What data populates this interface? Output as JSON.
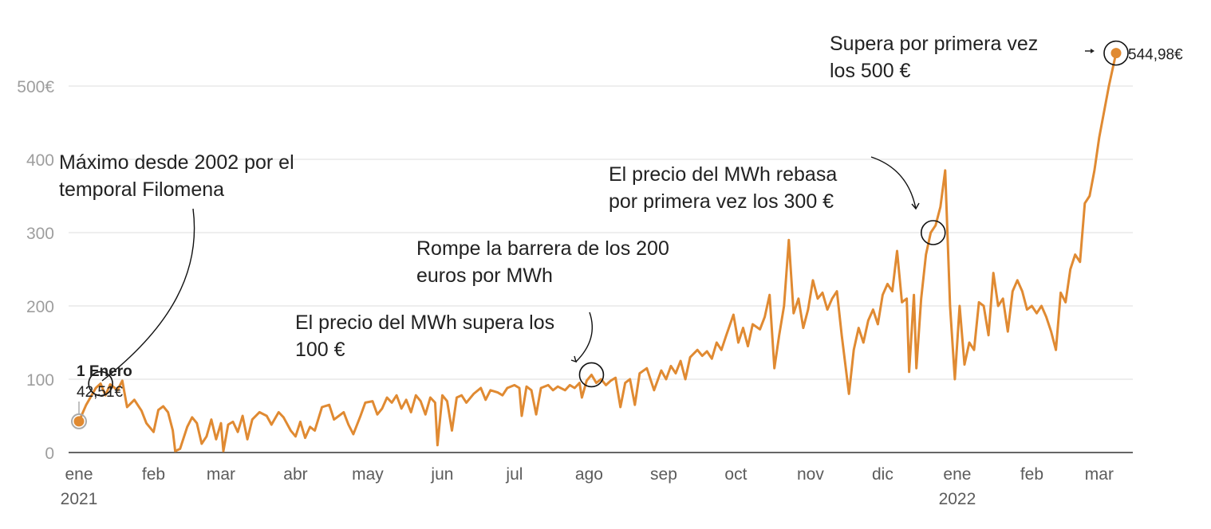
{
  "chart_data": {
    "type": "line",
    "title": "",
    "xlabel": "",
    "ylabel": "",
    "ylim": [
      0,
      550
    ],
    "xlim": [
      "2021-01-01",
      "2022-03-08"
    ],
    "grid": "horizontal",
    "legend": "none",
    "colors": {
      "line": "#e08a32",
      "grid": "#dddddd",
      "axis": "#333333"
    },
    "y_ticks": [
      {
        "value": 0,
        "label": "0"
      },
      {
        "value": 100,
        "label": "100"
      },
      {
        "value": 200,
        "label": "200"
      },
      {
        "value": 300,
        "label": "300"
      },
      {
        "value": 400,
        "label": "400"
      },
      {
        "value": 500,
        "label": "500€"
      }
    ],
    "x_ticks": [
      {
        "date": "2021-01-01",
        "label": "ene",
        "year": "2021"
      },
      {
        "date": "2021-02-01",
        "label": "feb"
      },
      {
        "date": "2021-03-01",
        "label": "mar"
      },
      {
        "date": "2021-04-01",
        "label": "abr"
      },
      {
        "date": "2021-05-01",
        "label": "may"
      },
      {
        "date": "2021-06-01",
        "label": "jun"
      },
      {
        "date": "2021-07-01",
        "label": "jul"
      },
      {
        "date": "2021-08-01",
        "label": "ago"
      },
      {
        "date": "2021-09-01",
        "label": "sep"
      },
      {
        "date": "2021-10-01",
        "label": "oct"
      },
      {
        "date": "2021-11-01",
        "label": "nov"
      },
      {
        "date": "2021-12-01",
        "label": "dic"
      },
      {
        "date": "2022-01-01",
        "label": "ene",
        "year": "2022"
      },
      {
        "date": "2022-02-01",
        "label": "feb"
      },
      {
        "date": "2022-03-01",
        "label": "mar"
      }
    ],
    "series": [
      {
        "points": [
          [
            "2021-01-01",
            42.51
          ],
          [
            "2021-01-04",
            65
          ],
          [
            "2021-01-08",
            88
          ],
          [
            "2021-01-10",
            94
          ],
          [
            "2021-01-12",
            78
          ],
          [
            "2021-01-14",
            93
          ],
          [
            "2021-01-17",
            85
          ],
          [
            "2021-01-19",
            98
          ],
          [
            "2021-01-21",
            62
          ],
          [
            "2021-01-24",
            72
          ],
          [
            "2021-01-27",
            57
          ],
          [
            "2021-01-29",
            40
          ],
          [
            "2021-02-01",
            28
          ],
          [
            "2021-02-03",
            58
          ],
          [
            "2021-02-05",
            63
          ],
          [
            "2021-02-07",
            55
          ],
          [
            "2021-02-09",
            30
          ],
          [
            "2021-02-10",
            2
          ],
          [
            "2021-02-12",
            5
          ],
          [
            "2021-02-15",
            35
          ],
          [
            "2021-02-17",
            48
          ],
          [
            "2021-02-19",
            40
          ],
          [
            "2021-02-21",
            12
          ],
          [
            "2021-02-23",
            22
          ],
          [
            "2021-02-25",
            45
          ],
          [
            "2021-02-27",
            18
          ],
          [
            "2021-03-01",
            40
          ],
          [
            "2021-03-02",
            2
          ],
          [
            "2021-03-04",
            38
          ],
          [
            "2021-03-06",
            42
          ],
          [
            "2021-03-08",
            28
          ],
          [
            "2021-03-10",
            50
          ],
          [
            "2021-03-12",
            18
          ],
          [
            "2021-03-14",
            45
          ],
          [
            "2021-03-17",
            55
          ],
          [
            "2021-03-20",
            50
          ],
          [
            "2021-03-22",
            38
          ],
          [
            "2021-03-25",
            55
          ],
          [
            "2021-03-27",
            48
          ],
          [
            "2021-03-30",
            30
          ],
          [
            "2021-04-01",
            22
          ],
          [
            "2021-04-03",
            42
          ],
          [
            "2021-04-05",
            20
          ],
          [
            "2021-04-07",
            35
          ],
          [
            "2021-04-09",
            30
          ],
          [
            "2021-04-12",
            62
          ],
          [
            "2021-04-15",
            65
          ],
          [
            "2021-04-17",
            45
          ],
          [
            "2021-04-19",
            50
          ],
          [
            "2021-04-21",
            55
          ],
          [
            "2021-04-23",
            38
          ],
          [
            "2021-04-25",
            25
          ],
          [
            "2021-04-28",
            50
          ],
          [
            "2021-04-30",
            68
          ],
          [
            "2021-05-03",
            70
          ],
          [
            "2021-05-05",
            52
          ],
          [
            "2021-05-07",
            60
          ],
          [
            "2021-05-09",
            75
          ],
          [
            "2021-05-11",
            68
          ],
          [
            "2021-05-13",
            78
          ],
          [
            "2021-05-15",
            60
          ],
          [
            "2021-05-17",
            72
          ],
          [
            "2021-05-19",
            55
          ],
          [
            "2021-05-21",
            78
          ],
          [
            "2021-05-23",
            70
          ],
          [
            "2021-05-25",
            52
          ],
          [
            "2021-05-27",
            75
          ],
          [
            "2021-05-29",
            68
          ],
          [
            "2021-05-30",
            10
          ],
          [
            "2021-06-01",
            78
          ],
          [
            "2021-06-03",
            70
          ],
          [
            "2021-06-05",
            30
          ],
          [
            "2021-06-07",
            75
          ],
          [
            "2021-06-09",
            78
          ],
          [
            "2021-06-11",
            68
          ],
          [
            "2021-06-14",
            80
          ],
          [
            "2021-06-17",
            88
          ],
          [
            "2021-06-19",
            72
          ],
          [
            "2021-06-21",
            85
          ],
          [
            "2021-06-24",
            82
          ],
          [
            "2021-06-26",
            78
          ],
          [
            "2021-06-28",
            88
          ],
          [
            "2021-07-01",
            92
          ],
          [
            "2021-07-03",
            88
          ],
          [
            "2021-07-04",
            50
          ],
          [
            "2021-07-06",
            90
          ],
          [
            "2021-07-08",
            85
          ],
          [
            "2021-07-10",
            52
          ],
          [
            "2021-07-12",
            88
          ],
          [
            "2021-07-15",
            92
          ],
          [
            "2021-07-17",
            85
          ],
          [
            "2021-07-19",
            90
          ],
          [
            "2021-07-22",
            85
          ],
          [
            "2021-07-24",
            92
          ],
          [
            "2021-07-26",
            88
          ],
          [
            "2021-07-28",
            95
          ],
          [
            "2021-07-29",
            75
          ],
          [
            "2021-07-31",
            98
          ],
          [
            "2021-08-02",
            106
          ],
          [
            "2021-08-04",
            95
          ],
          [
            "2021-08-06",
            100
          ],
          [
            "2021-08-08",
            92
          ],
          [
            "2021-08-10",
            98
          ],
          [
            "2021-08-12",
            102
          ],
          [
            "2021-08-14",
            62
          ],
          [
            "2021-08-16",
            95
          ],
          [
            "2021-08-18",
            100
          ],
          [
            "2021-08-20",
            65
          ],
          [
            "2021-08-22",
            108
          ],
          [
            "2021-08-25",
            115
          ],
          [
            "2021-08-28",
            85
          ],
          [
            "2021-08-31",
            112
          ],
          [
            "2021-09-02",
            100
          ],
          [
            "2021-09-04",
            118
          ],
          [
            "2021-09-06",
            108
          ],
          [
            "2021-09-08",
            125
          ],
          [
            "2021-09-10",
            100
          ],
          [
            "2021-09-12",
            130
          ],
          [
            "2021-09-15",
            140
          ],
          [
            "2021-09-17",
            132
          ],
          [
            "2021-09-19",
            138
          ],
          [
            "2021-09-21",
            128
          ],
          [
            "2021-09-23",
            150
          ],
          [
            "2021-09-25",
            140
          ],
          [
            "2021-09-27",
            160
          ],
          [
            "2021-09-30",
            188
          ],
          [
            "2021-10-02",
            150
          ],
          [
            "2021-10-04",
            170
          ],
          [
            "2021-10-06",
            145
          ],
          [
            "2021-10-08",
            175
          ],
          [
            "2021-10-11",
            168
          ],
          [
            "2021-10-13",
            185
          ],
          [
            "2021-10-15",
            215
          ],
          [
            "2021-10-17",
            115
          ],
          [
            "2021-10-19",
            160
          ],
          [
            "2021-10-21",
            200
          ],
          [
            "2021-10-23",
            290
          ],
          [
            "2021-10-25",
            190
          ],
          [
            "2021-10-27",
            210
          ],
          [
            "2021-10-29",
            170
          ],
          [
            "2021-10-31",
            195
          ],
          [
            "2021-11-02",
            235
          ],
          [
            "2021-11-04",
            210
          ],
          [
            "2021-11-06",
            218
          ],
          [
            "2021-11-08",
            195
          ],
          [
            "2021-11-10",
            210
          ],
          [
            "2021-11-12",
            220
          ],
          [
            "2021-11-14",
            160
          ],
          [
            "2021-11-17",
            80
          ],
          [
            "2021-11-19",
            140
          ],
          [
            "2021-11-21",
            170
          ],
          [
            "2021-11-23",
            150
          ],
          [
            "2021-11-25",
            180
          ],
          [
            "2021-11-27",
            195
          ],
          [
            "2021-11-29",
            175
          ],
          [
            "2021-12-01",
            215
          ],
          [
            "2021-12-03",
            230
          ],
          [
            "2021-12-05",
            220
          ],
          [
            "2021-12-07",
            275
          ],
          [
            "2021-12-09",
            205
          ],
          [
            "2021-12-11",
            210
          ],
          [
            "2021-12-12",
            110
          ],
          [
            "2021-12-14",
            215
          ],
          [
            "2021-12-15",
            115
          ],
          [
            "2021-12-17",
            210
          ],
          [
            "2021-12-19",
            270
          ],
          [
            "2021-12-21",
            300
          ],
          [
            "2021-12-23",
            310
          ],
          [
            "2021-12-25",
            335
          ],
          [
            "2021-12-27",
            385
          ],
          [
            "2021-12-29",
            200
          ],
          [
            "2021-12-31",
            100
          ],
          [
            "2022-01-02",
            200
          ],
          [
            "2022-01-04",
            120
          ],
          [
            "2022-01-06",
            150
          ],
          [
            "2022-01-08",
            140
          ],
          [
            "2022-01-10",
            205
          ],
          [
            "2022-01-12",
            200
          ],
          [
            "2022-01-14",
            160
          ],
          [
            "2022-01-16",
            245
          ],
          [
            "2022-01-18",
            200
          ],
          [
            "2022-01-20",
            210
          ],
          [
            "2022-01-22",
            165
          ],
          [
            "2022-01-24",
            220
          ],
          [
            "2022-01-26",
            235
          ],
          [
            "2022-01-28",
            220
          ],
          [
            "2022-01-30",
            195
          ],
          [
            "2022-02-01",
            200
          ],
          [
            "2022-02-03",
            190
          ],
          [
            "2022-02-05",
            200
          ],
          [
            "2022-02-07",
            185
          ],
          [
            "2022-02-09",
            165
          ],
          [
            "2022-02-11",
            140
          ],
          [
            "2022-02-13",
            218
          ],
          [
            "2022-02-15",
            205
          ],
          [
            "2022-02-17",
            250
          ],
          [
            "2022-02-19",
            270
          ],
          [
            "2022-02-21",
            260
          ],
          [
            "2022-02-23",
            340
          ],
          [
            "2022-02-25",
            350
          ],
          [
            "2022-02-27",
            385
          ],
          [
            "2022-03-01",
            430
          ],
          [
            "2022-03-05",
            500
          ],
          [
            "2022-03-08",
            544.98
          ]
        ]
      }
    ],
    "markers": [
      {
        "name": "start",
        "date": "2021-01-01",
        "value": 42.51
      },
      {
        "name": "end",
        "date": "2022-03-08",
        "value": 544.98
      }
    ],
    "highlight_circles": [
      {
        "name": "filomena",
        "date": "2021-01-10",
        "value": 94
      },
      {
        "name": "first-100",
        "date": "2021-08-02",
        "value": 106
      },
      {
        "name": "first-300",
        "date": "2021-12-22",
        "value": 300
      },
      {
        "name": "first-500",
        "date": "2022-03-08",
        "value": 544.98
      }
    ],
    "annotations": [
      {
        "name": "annotation-filomena",
        "lines": [
          "Máximo desde 2002 por el",
          "temporal Filomena"
        ]
      },
      {
        "name": "annotation-100",
        "lines": [
          "El precio del MWh supera los",
          "100 €"
        ]
      },
      {
        "name": "annotation-200",
        "lines": [
          "Rompe la barrera de los 200",
          "euros por MWh"
        ]
      },
      {
        "name": "annotation-300",
        "lines": [
          "El precio del MWh rebasa",
          "por primera vez los 300 €"
        ]
      },
      {
        "name": "annotation-500",
        "lines": [
          "Supera por primera vez",
          "los 500 €"
        ]
      }
    ],
    "labels": {
      "start_title": "1 Enero",
      "start_value": "42,51€",
      "end_value": "544,98€"
    }
  }
}
